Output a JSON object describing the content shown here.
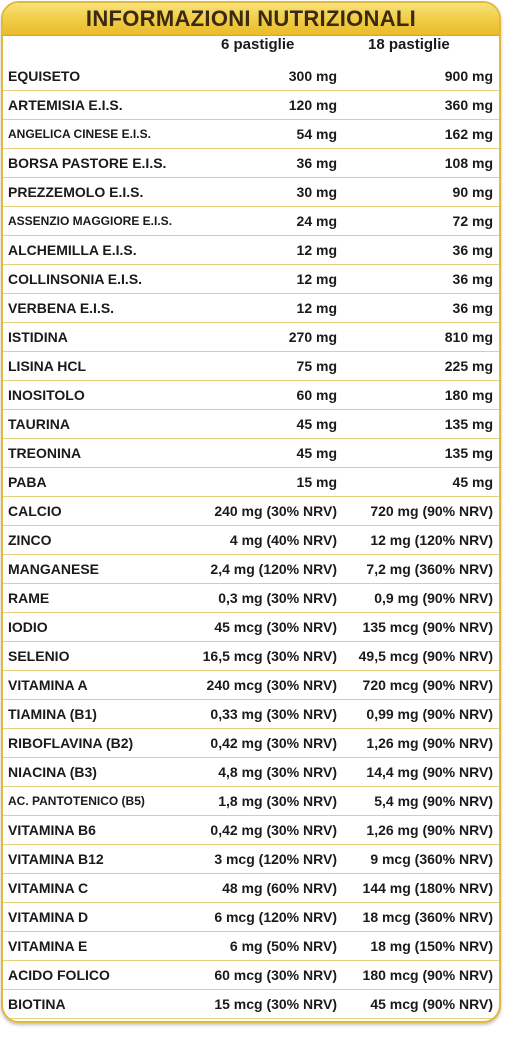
{
  "title": "INFORMAZIONI NUTRIZIONALI",
  "columns": [
    "6 pastiglie",
    "18 pastiglie"
  ],
  "rows": [
    {
      "name": "EQUISETO",
      "v6": "300 mg",
      "v18": "900 mg"
    },
    {
      "name": "ARTEMISIA E.I.S.",
      "v6": "120 mg",
      "v18": "360 mg"
    },
    {
      "name": "ANGELICA CINESE E.I.S.",
      "v6": "54 mg",
      "v18": "162 mg"
    },
    {
      "name": "BORSA PASTORE E.I.S.",
      "v6": "36 mg",
      "v18": "108 mg"
    },
    {
      "name": "PREZZEMOLO E.I.S.",
      "v6": "30 mg",
      "v18": "90 mg"
    },
    {
      "name": "ASSENZIO MAGGIORE E.I.S.",
      "v6": "24 mg",
      "v18": "72 mg"
    },
    {
      "name": "ALCHEMILLA E.I.S.",
      "v6": "12 mg",
      "v18": "36 mg"
    },
    {
      "name": "COLLINSONIA E.I.S.",
      "v6": "12 mg",
      "v18": "36 mg"
    },
    {
      "name": "VERBENA E.I.S.",
      "v6": "12 mg",
      "v18": "36 mg"
    },
    {
      "name": "ISTIDINA",
      "v6": "270 mg",
      "v18": "810 mg"
    },
    {
      "name": "LISINA HCL",
      "v6": "75 mg",
      "v18": "225 mg"
    },
    {
      "name": "INOSITOLO",
      "v6": "60 mg",
      "v18": "180 mg"
    },
    {
      "name": "TAURINA",
      "v6": "45 mg",
      "v18": "135 mg"
    },
    {
      "name": "TREONINA",
      "v6": "45 mg",
      "v18": "135 mg"
    },
    {
      "name": "PABA",
      "v6": "15 mg",
      "v18": "45 mg"
    },
    {
      "name": "CALCIO",
      "v6": "240 mg (30% NRV)",
      "v18": "720 mg (90% NRV)"
    },
    {
      "name": "ZINCO",
      "v6": "4 mg (40% NRV)",
      "v18": "12 mg (120% NRV)"
    },
    {
      "name": "MANGANESE",
      "v6": "2,4 mg (120% NRV)",
      "v18": "7,2 mg (360% NRV)"
    },
    {
      "name": "RAME",
      "v6": "0,3 mg (30% NRV)",
      "v18": "0,9 mg (90% NRV)"
    },
    {
      "name": "IODIO",
      "v6": "45 mcg (30% NRV)",
      "v18": "135 mcg (90% NRV)"
    },
    {
      "name": "SELENIO",
      "v6": "16,5 mcg (30% NRV)",
      "v18": "49,5 mcg (90% NRV)"
    },
    {
      "name": "VITAMINA A",
      "v6": "240 mcg (30% NRV)",
      "v18": "720 mcg (90% NRV)"
    },
    {
      "name": "TIAMINA (B1)",
      "v6": "0,33 mg (30% NRV)",
      "v18": "0,99 mg (90% NRV)"
    },
    {
      "name": "RIBOFLAVINA (B2)",
      "v6": "0,42 mg (30% NRV)",
      "v18": "1,26 mg (90% NRV)"
    },
    {
      "name": "NIACINA (B3)",
      "v6": "4,8 mg (30% NRV)",
      "v18": "14,4 mg (90% NRV)"
    },
    {
      "name": "AC. PANTOTENICO (B5)",
      "v6": "1,8 mg (30% NRV)",
      "v18": "5,4 mg (90% NRV)"
    },
    {
      "name": "VITAMINA B6",
      "v6": "0,42 mg (30% NRV)",
      "v18": "1,26 mg (90% NRV)"
    },
    {
      "name": "VITAMINA B12",
      "v6": "3 mcg (120% NRV)",
      "v18": "9 mcg (360% NRV)"
    },
    {
      "name": "VITAMINA C",
      "v6": "48 mg (60% NRV)",
      "v18": "144 mg (180% NRV)"
    },
    {
      "name": "VITAMINA D",
      "v6": "6 mcg (120% NRV)",
      "v18": "18 mcg (360% NRV)"
    },
    {
      "name": "VITAMINA E",
      "v6": "6 mg (50% NRV)",
      "v18": "18 mg (150% NRV)"
    },
    {
      "name": "ACIDO FOLICO",
      "v6": "60  mcg (30% NRV)",
      "v18": "180 mcg (90% NRV)"
    },
    {
      "name": "BIOTINA",
      "v6": "15 mcg (30% NRV)",
      "v18": "45 mcg (90% NRV)"
    }
  ]
}
